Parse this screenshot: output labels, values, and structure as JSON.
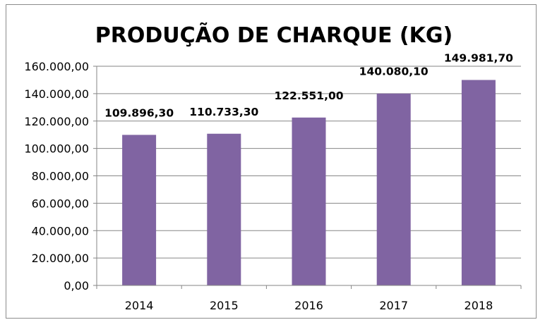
{
  "chart_data": {
    "type": "bar",
    "title": "PRODUÇÃO DE CHARQUE (KG)",
    "xlabel": "",
    "ylabel": "",
    "categories": [
      "2014",
      "2015",
      "2016",
      "2017",
      "2018"
    ],
    "values": [
      109896.3,
      110733.3,
      122551.0,
      140080.1,
      149981.7
    ],
    "data_labels": [
      "109.896,30",
      "110.733,30",
      "122.551,00",
      "140.080,10",
      "149.981,70"
    ],
    "ylim": [
      0,
      160000
    ],
    "yticks": [
      0,
      20000,
      40000,
      60000,
      80000,
      100000,
      120000,
      140000,
      160000
    ],
    "ytick_labels": [
      "0,00",
      "20.000,00",
      "40.000,00",
      "60.000,00",
      "80.000,00",
      "100.000,00",
      "120.000,00",
      "140.000,00",
      "160.000,00"
    ],
    "grid": true,
    "legend": "none",
    "bar_color": "#8064a2",
    "grid_color": "#868686"
  }
}
